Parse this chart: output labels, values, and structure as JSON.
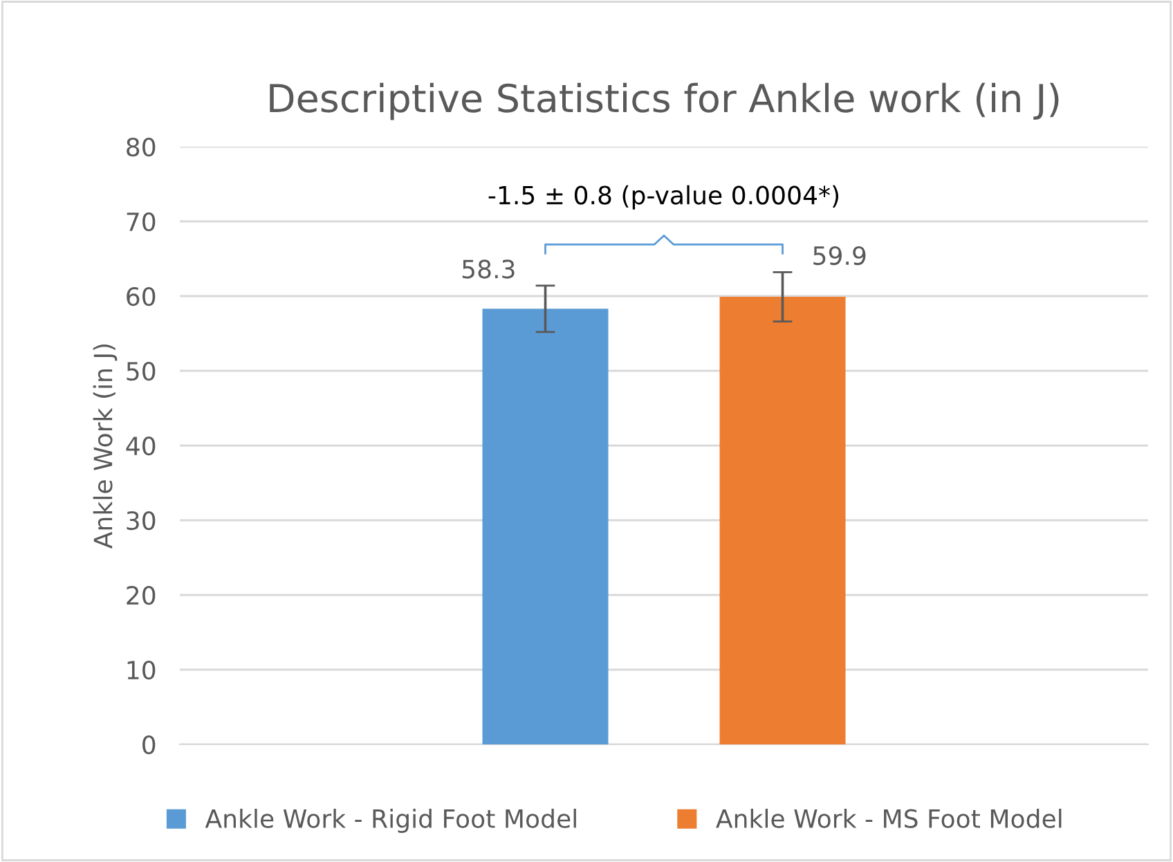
{
  "chart_data": {
    "type": "bar",
    "title": "Descriptive Statistics for Ankle work (in J)",
    "ylabel": "Ankle Work (in J)",
    "categories": [
      null
    ],
    "series": [
      {
        "name": "Ankle Work - Rigid Foot Model",
        "color": "#5b9bd5",
        "values": [
          58.3
        ],
        "errors": [
          3.1
        ]
      },
      {
        "name": "Ankle Work - MS Foot Model",
        "color": "#ed7d31",
        "values": [
          59.9
        ],
        "errors": [
          3.3
        ]
      }
    ],
    "ylim": [
      0,
      80
    ],
    "yticks": [
      0,
      10,
      20,
      30,
      40,
      50,
      60,
      70,
      80
    ],
    "grid": "y",
    "legend": "bottom",
    "data_labels": true,
    "annotations": [
      "-1.5 ± 0.8 (p-value 0.0004*)"
    ]
  }
}
